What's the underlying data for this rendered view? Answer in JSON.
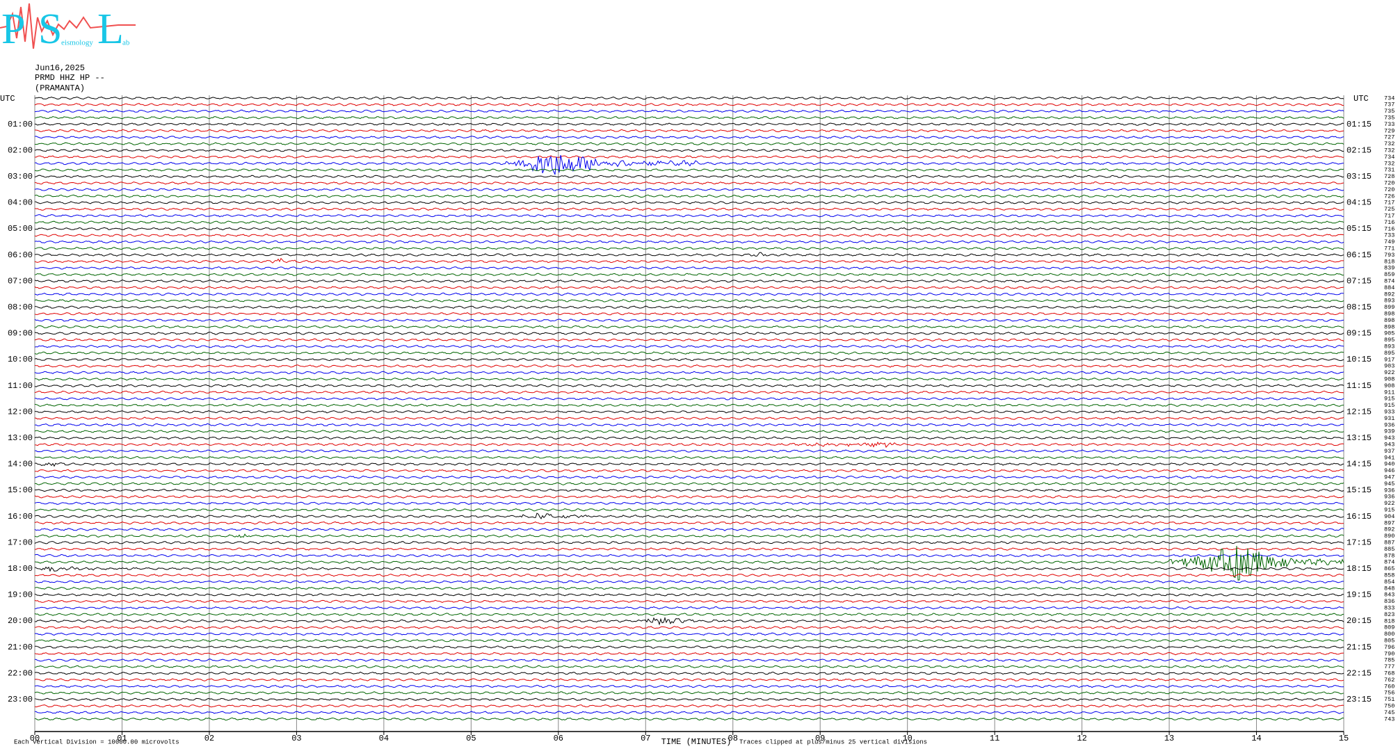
{
  "logo": {
    "p": "P",
    "s": "S",
    "l": "L",
    "word2": "eismology",
    "word3": "ab"
  },
  "header": {
    "date": "Jun16,2025",
    "station": "PRMD HHZ HP --",
    "location": "(PRAMANTA)"
  },
  "utc_left": "UTC",
  "utc_right": "UTC",
  "left_labels": [
    "01:00",
    "02:00",
    "03:00",
    "04:00",
    "05:00",
    "06:00",
    "07:00",
    "08:00",
    "09:00",
    "10:00",
    "11:00",
    "12:00",
    "13:00",
    "14:00",
    "15:00",
    "16:00",
    "17:00",
    "18:00",
    "19:00",
    "20:00",
    "21:00",
    "22:00",
    "23:00"
  ],
  "right_labels": [
    "01:15",
    "02:15",
    "03:15",
    "04:15",
    "05:15",
    "06:15",
    "07:15",
    "08:15",
    "09:15",
    "10:15",
    "11:15",
    "12:15",
    "13:15",
    "14:15",
    "15:15",
    "16:15",
    "17:15",
    "18:15",
    "19:15",
    "20:15",
    "21:15",
    "22:15",
    "23:15"
  ],
  "row_means": [
    734,
    737,
    735,
    735,
    733,
    729,
    727,
    732,
    732,
    734,
    732,
    731,
    728,
    720,
    720,
    726,
    717,
    725,
    717,
    716,
    716,
    733,
    749,
    771,
    793,
    818,
    839,
    859,
    874,
    884,
    892,
    893,
    899,
    898,
    898,
    898,
    905,
    895,
    893,
    895,
    917,
    903,
    922,
    908,
    908,
    911,
    915,
    915,
    933,
    931,
    936,
    939,
    943,
    943,
    937,
    941,
    940,
    946,
    947,
    945,
    936,
    936,
    922,
    915,
    904,
    897,
    892,
    890,
    887,
    885,
    878,
    874,
    865,
    858,
    854,
    848,
    843,
    836,
    833,
    823,
    818,
    809,
    800,
    805,
    796,
    790,
    785,
    777,
    768,
    762,
    760,
    756,
    751,
    750,
    745,
    743
  ],
  "minute_labels": [
    "00",
    "01",
    "02",
    "03",
    "04",
    "05",
    "06",
    "07",
    "08",
    "09",
    "10",
    "11",
    "12",
    "13",
    "14",
    "15"
  ],
  "footer": {
    "x_title": "TIME (MINUTES)",
    "scale_note": "Each Vertical Division = 10000.00 microvolts",
    "clip_note": "Traces clipped at plus/minus 25 vertical divisions"
  }
}
